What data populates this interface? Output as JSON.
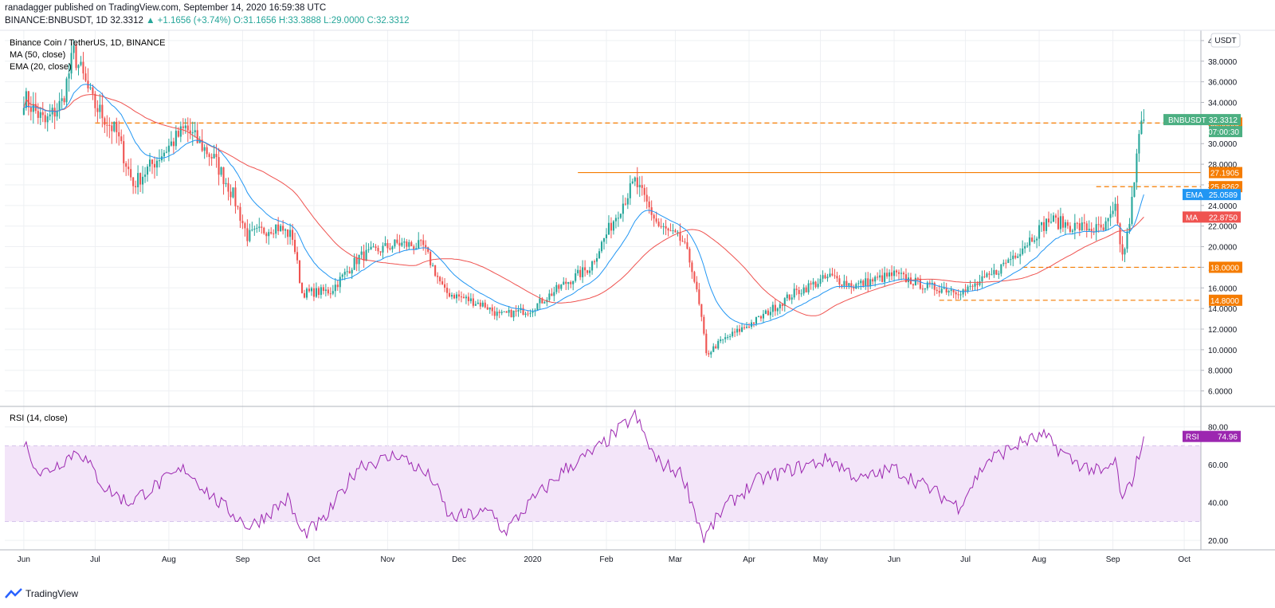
{
  "header": {
    "published": "ranadagger published on TradingView.com, September 14, 2020 16:59:38 UTC",
    "ticker": "BINANCE:BNBUSDT, 1D",
    "last": "32.3312",
    "change": "▲ +1.1656 (+3.74%)",
    "ohlc": "O:31.1656 H:33.3888 L:29.0000 C:32.3312"
  },
  "legend": {
    "title": "Binance Coin / TetherUS, 1D, BINANCE",
    "ma": "MA (50, close)",
    "ema": "EMA (20, close)",
    "rsi": "RSI (14, close)"
  },
  "currency_badge": "USDT",
  "footer": {
    "brand": "TradingView"
  },
  "colors": {
    "up": "#26a69a",
    "down": "#ef5350",
    "ema": "#2196f3",
    "ma": "#ef5350",
    "level": "#f57c00",
    "rsi": "#9c27b0",
    "rsi_band": "#f3e5f9",
    "grid": "#eef0f3",
    "price_label": "#4caf82"
  },
  "chart_data": {
    "type": "candlestick",
    "symbol": "BNBUSDT",
    "price_axis": {
      "ticks": [
        6,
        8,
        10,
        12,
        14,
        16,
        18,
        20,
        22,
        24,
        26,
        28,
        30,
        32,
        34,
        36,
        38,
        40
      ],
      "min": 4.5,
      "max": 41.0
    },
    "rsi_axis": {
      "ticks": [
        20,
        40,
        60,
        80
      ],
      "min": 15,
      "max": 90,
      "bands": [
        30,
        70
      ]
    },
    "x_ticks": [
      "Jun",
      "Jul",
      "Aug",
      "Sep",
      "Oct",
      "Nov",
      "Dec",
      "2020",
      "Feb",
      "Mar",
      "Apr",
      "May",
      "Jun",
      "Jul",
      "Aug",
      "Sep",
      "Oct"
    ],
    "price_anchors": [
      [
        "2019-06-01",
        34.5
      ],
      [
        "2019-06-10",
        32
      ],
      [
        "2019-06-17",
        34
      ],
      [
        "2019-06-22",
        38.8
      ],
      [
        "2019-06-30",
        34
      ],
      [
        "2019-07-10",
        31
      ],
      [
        "2019-07-17",
        26
      ],
      [
        "2019-07-25",
        28
      ],
      [
        "2019-08-08",
        31.5
      ],
      [
        "2019-08-20",
        28.5
      ],
      [
        "2019-08-28",
        25
      ],
      [
        "2019-09-03",
        21
      ],
      [
        "2019-09-15",
        22
      ],
      [
        "2019-09-22",
        21
      ],
      [
        "2019-09-26",
        15.5
      ],
      [
        "2019-10-08",
        15.7
      ],
      [
        "2019-10-20",
        19
      ],
      [
        "2019-11-05",
        20.3
      ],
      [
        "2019-11-16",
        20
      ],
      [
        "2019-11-25",
        15.6
      ],
      [
        "2019-12-12",
        14.3
      ],
      [
        "2019-12-18",
        13.3
      ],
      [
        "2019-12-31",
        13.9
      ],
      [
        "2020-01-15",
        16.5
      ],
      [
        "2020-01-25",
        18
      ],
      [
        "2020-02-06",
        23.5
      ],
      [
        "2020-02-13",
        26.3
      ],
      [
        "2020-02-23",
        22
      ],
      [
        "2020-03-04",
        20.5
      ],
      [
        "2020-03-08",
        18
      ],
      [
        "2020-03-12",
        13
      ],
      [
        "2020-03-14",
        9.5
      ],
      [
        "2020-03-20",
        10.8
      ],
      [
        "2020-04-05",
        13
      ],
      [
        "2020-04-20",
        15.5
      ],
      [
        "2020-05-05",
        17.1
      ],
      [
        "2020-05-15",
        16.2
      ],
      [
        "2020-06-01",
        17.3
      ],
      [
        "2020-06-15",
        16.1
      ],
      [
        "2020-07-01",
        15.7
      ],
      [
        "2020-07-12",
        17.2
      ],
      [
        "2020-07-25",
        20
      ],
      [
        "2020-08-05",
        22.6
      ],
      [
        "2020-08-15",
        22
      ],
      [
        "2020-08-28",
        21.6
      ],
      [
        "2020-09-02",
        23.5
      ],
      [
        "2020-09-05",
        19
      ],
      [
        "2020-09-07",
        21
      ],
      [
        "2020-09-10",
        26
      ],
      [
        "2020-09-12",
        31
      ],
      [
        "2020-09-14",
        32.33
      ]
    ],
    "ma50_last": 22.875,
    "ema20_last": 25.0589,
    "rsi_anchors": [
      [
        "2019-06-01",
        72
      ],
      [
        "2019-06-08",
        55
      ],
      [
        "2019-06-15",
        60
      ],
      [
        "2019-06-24",
        68
      ],
      [
        "2019-07-05",
        48
      ],
      [
        "2019-07-15",
        40
      ],
      [
        "2019-07-28",
        50
      ],
      [
        "2019-08-08",
        58
      ],
      [
        "2019-08-20",
        42
      ],
      [
        "2019-09-04",
        27
      ],
      [
        "2019-09-20",
        42
      ],
      [
        "2019-09-26",
        23
      ],
      [
        "2019-10-05",
        30
      ],
      [
        "2019-10-20",
        60
      ],
      [
        "2019-11-01",
        63
      ],
      [
        "2019-11-05",
        66
      ],
      [
        "2019-11-20",
        52
      ],
      [
        "2019-11-27",
        32
      ],
      [
        "2019-12-15",
        35
      ],
      [
        "2019-12-20",
        24
      ],
      [
        "2019-12-31",
        40
      ],
      [
        "2020-01-15",
        58
      ],
      [
        "2020-01-28",
        68
      ],
      [
        "2020-02-13",
        86
      ],
      [
        "2020-02-22",
        62
      ],
      [
        "2020-03-04",
        55
      ],
      [
        "2020-03-08",
        40
      ],
      [
        "2020-03-13",
        21
      ],
      [
        "2020-03-22",
        38
      ],
      [
        "2020-04-05",
        52
      ],
      [
        "2020-04-20",
        58
      ],
      [
        "2020-05-05",
        63
      ],
      [
        "2020-05-18",
        52
      ],
      [
        "2020-06-01",
        58
      ],
      [
        "2020-06-15",
        48
      ],
      [
        "2020-06-28",
        38
      ],
      [
        "2020-07-10",
        62
      ],
      [
        "2020-07-25",
        72
      ],
      [
        "2020-08-03",
        75
      ],
      [
        "2020-08-15",
        62
      ],
      [
        "2020-08-28",
        55
      ],
      [
        "2020-09-02",
        62
      ],
      [
        "2020-09-05",
        40
      ],
      [
        "2020-09-09",
        52
      ],
      [
        "2020-09-14",
        74.96
      ]
    ],
    "horizontal_levels": [
      {
        "value": 32.0,
        "label": "32.0000",
        "style": "dashed",
        "start": "2019-07-01"
      },
      {
        "value": 27.1905,
        "label": "27.1905",
        "style": "solid",
        "start": "2020-01-20"
      },
      {
        "value": 25.8262,
        "label": "25.8262",
        "style": "dashed",
        "start": "2020-08-25"
      },
      {
        "value": 18.0,
        "label": "18.0000",
        "style": "dashed",
        "start": "2020-07-25"
      },
      {
        "value": 14.8,
        "label": "14.8000",
        "style": "dashed",
        "start": "2020-06-20"
      }
    ],
    "price_labels": [
      {
        "text": "BNBUSDT",
        "value_text": "32.3312",
        "value": 32.3312,
        "kind": "last"
      },
      {
        "text": "",
        "value_text": "07:00:30",
        "kind": "countdown"
      },
      {
        "text": "EMA",
        "value_text": "25.0589",
        "value": 25.0589,
        "kind": "ema"
      },
      {
        "text": "MA",
        "value_text": "22.8750",
        "value": 22.875,
        "kind": "ma"
      },
      {
        "text": "RSI",
        "value_text": "74.96",
        "value": 74.96,
        "kind": "rsi"
      }
    ]
  }
}
